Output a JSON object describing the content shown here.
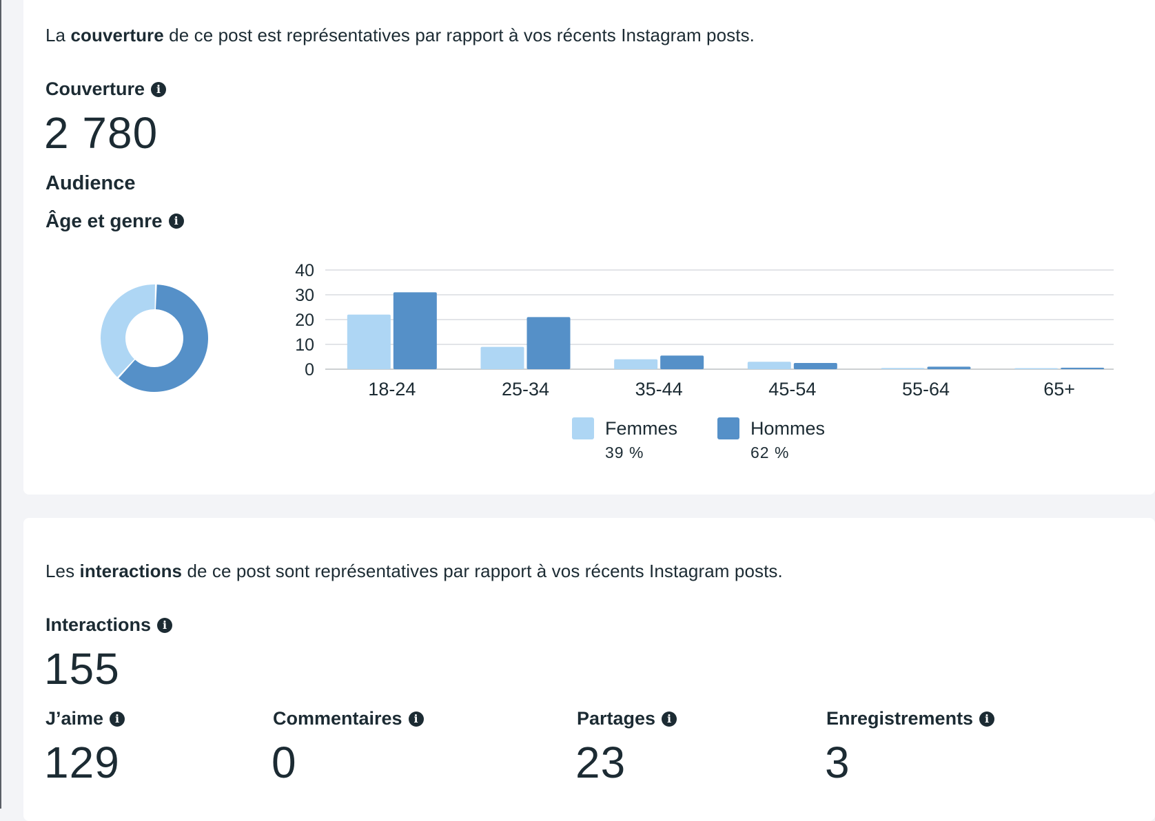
{
  "colors": {
    "femmes": "#aed6f4",
    "hommes": "#5590c8",
    "text": "#1c2b33",
    "grid": "#d9dce0"
  },
  "reach_section": {
    "intro_prefix": "La ",
    "intro_bold": "couverture",
    "intro_suffix": " de ce post est représentatives par rapport à vos récents Instagram posts.",
    "metric_label": "Couverture",
    "metric_value": "2 780",
    "audience_title": "Audience",
    "age_gender_title": "Âge et genre"
  },
  "legend": [
    {
      "label": "Femmes",
      "percent": "39 %"
    },
    {
      "label": "Hommes",
      "percent": "62 %"
    }
  ],
  "chart_data": {
    "type": "bar",
    "categories": [
      "18-24",
      "25-34",
      "35-44",
      "45-54",
      "55-64",
      "65+"
    ],
    "series": [
      {
        "name": "Femmes",
        "values": [
          22,
          9,
          4,
          3,
          0.5,
          0.4
        ]
      },
      {
        "name": "Hommes",
        "values": [
          31,
          21,
          5.5,
          2.5,
          1,
          0.6
        ]
      }
    ],
    "ylim": [
      0,
      40
    ],
    "yticks": [
      "0",
      "10",
      "20",
      "30",
      "40"
    ],
    "grid": true,
    "legend_placement": "bottom-center",
    "donut": {
      "type": "pie",
      "values": [
        39,
        62
      ],
      "labels": [
        "Femmes",
        "Hommes"
      ]
    }
  },
  "interactions_section": {
    "intro_prefix": "Les ",
    "intro_bold": "interactions",
    "intro_suffix": " de ce post sont représentatives par rapport à vos récents Instagram posts.",
    "metric_label": "Interactions",
    "metric_value": "155",
    "breakdown": [
      {
        "label": "J’aime",
        "value": "129"
      },
      {
        "label": "Commentaires",
        "value": "0"
      },
      {
        "label": "Partages",
        "value": "23"
      },
      {
        "label": "Enregistrements",
        "value": "3"
      }
    ]
  },
  "icons": {
    "info": "info-icon"
  },
  "info_glyph": "i"
}
